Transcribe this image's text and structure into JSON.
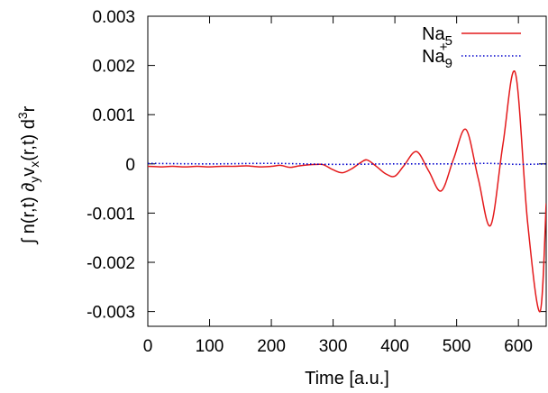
{
  "chart_data": {
    "type": "line",
    "xlabel": "Time [a.u.]",
    "ylabel": "∫ n(r,t) ∂yvx(r,t) d3r",
    "ylabel_parts": {
      "integral": "∫ n(r,t) ∂",
      "sub_y": "y",
      "v": "v",
      "sub_x": "x",
      "rest": "(r,t) d",
      "sup_3": "3",
      "r": "r"
    },
    "xlim": [
      0,
      645
    ],
    "ylim": [
      -0.0033,
      0.003
    ],
    "xticks": [
      0,
      100,
      200,
      300,
      400,
      500,
      600
    ],
    "xtick_labels": [
      "0",
      "100",
      "200",
      "300",
      "400",
      "500",
      "600"
    ],
    "yticks": [
      -0.003,
      -0.002,
      -0.001,
      0,
      0.001,
      0.002,
      0.003
    ],
    "ytick_labels": [
      "-0.003",
      "-0.002",
      "-0.001",
      "0",
      "0.001",
      "0.002",
      "0.003"
    ],
    "grid": false,
    "legend_position": "top-right",
    "series": [
      {
        "name": "Na5",
        "label_base": "Na",
        "label_sub": "5",
        "label_sup": "",
        "color": "#e41a1c",
        "style": "solid",
        "x": [
          0,
          20,
          40,
          60,
          80,
          100,
          120,
          140,
          160,
          180,
          200,
          215,
          230,
          245,
          260,
          275,
          285,
          300,
          315,
          330,
          345,
          355,
          370,
          385,
          400,
          415,
          435,
          455,
          475,
          495,
          515,
          535,
          555,
          575,
          595,
          615,
          635,
          645
        ],
        "y": [
          -5e-05,
          -6e-05,
          -5e-05,
          -6e-05,
          -5e-05,
          -6e-05,
          -5e-05,
          -5e-05,
          -4e-05,
          -6e-05,
          -5e-05,
          -3e-05,
          -7e-05,
          -4e-05,
          -2e-05,
          -1e-05,
          -2e-05,
          -0.00012,
          -0.00018,
          -0.0001,
          3e-05,
          8e-05,
          -5e-05,
          -0.0002,
          -0.00025,
          -3e-05,
          0.00025,
          -0.00015,
          -0.00055,
          0.0001,
          0.0007,
          -0.0003,
          -0.00125,
          0.0004,
          0.00185,
          -0.0012,
          -0.003,
          -0.0008
        ]
      },
      {
        "name": "Na9+",
        "label_base": "Na",
        "label_sub": "9",
        "label_sup": "+",
        "color": "#0000cc",
        "style": "dotted",
        "x": [
          0,
          100,
          200,
          300,
          400,
          500,
          550,
          600,
          645
        ],
        "y": [
          1e-05,
          0.0,
          1e-05,
          -1e-05,
          0.0,
          0.0,
          1e-05,
          -1e-05,
          0.0
        ]
      }
    ]
  }
}
